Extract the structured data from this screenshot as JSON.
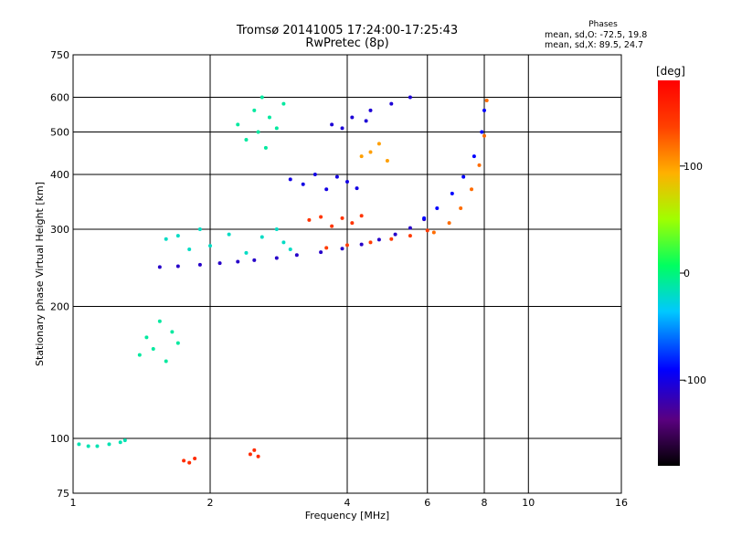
{
  "header": {
    "title": "Tromsø 20141005 17:24:00-17:25:43",
    "subtitle": "RwPretec (8p)",
    "phase_heading": "Phases",
    "phase_o": "mean, sd,O: -72.5, 19.8",
    "phase_x": "mean, sd,X:  89.5, 24.7"
  },
  "chart_data": {
    "type": "scatter",
    "xlabel": "Frequency [MHz]",
    "ylabel": "Stationary phase Virtual Height [km]",
    "x_scale": "log",
    "y_scale": "log",
    "xlim": [
      1,
      16
    ],
    "ylim": [
      75,
      750
    ],
    "x_ticks": [
      1,
      2,
      4,
      6,
      8,
      10,
      16
    ],
    "y_ticks": [
      75,
      100,
      200,
      300,
      400,
      500,
      600,
      750
    ],
    "grid": true,
    "colorbar": {
      "label": "[deg]",
      "range": [
        -180,
        180
      ],
      "ticks": [
        100,
        0,
        -100
      ]
    },
    "series": [
      {
        "phase": -110,
        "x": [
          1.55,
          1.7,
          1.9,
          2.1,
          2.3,
          2.5,
          2.8,
          3.1,
          3.5,
          3.9,
          4.3,
          4.7,
          5.1,
          5.5,
          5.9
        ],
        "y": [
          246,
          247,
          249,
          251,
          253,
          255,
          258,
          262,
          266,
          271,
          277,
          284,
          292,
          302,
          316
        ]
      },
      {
        "phase": -90,
        "x": [
          5.9,
          6.3,
          6.8,
          7.2,
          7.6,
          7.9,
          8.0
        ],
        "y": [
          318,
          335,
          362,
          395,
          440,
          500,
          560
        ]
      },
      {
        "phase": 120,
        "x": [
          6.2,
          6.7,
          7.1,
          7.5,
          7.8,
          8.0,
          8.1
        ],
        "y": [
          295,
          310,
          335,
          370,
          420,
          490,
          590
        ]
      },
      {
        "phase": 140,
        "x": [
          3.6,
          4.0,
          4.5,
          5.0,
          5.5,
          6.0
        ],
        "y": [
          272,
          276,
          280,
          285,
          290,
          298
        ]
      },
      {
        "phase": -20,
        "x": [
          1.6,
          1.7,
          1.8,
          1.9,
          2.0,
          2.2,
          2.4,
          2.6,
          2.8,
          2.9,
          3.0
        ],
        "y": [
          285,
          290,
          270,
          300,
          275,
          292,
          265,
          288,
          300,
          280,
          270
        ]
      },
      {
        "phase": -10,
        "x": [
          2.3,
          2.4,
          2.5,
          2.55,
          2.6,
          2.65,
          2.7,
          2.8,
          2.9
        ],
        "y": [
          520,
          480,
          560,
          500,
          600,
          460,
          540,
          510,
          580
        ]
      },
      {
        "phase": -100,
        "x": [
          3.0,
          3.2,
          3.4,
          3.6,
          3.8,
          4.0,
          4.2
        ],
        "y": [
          390,
          380,
          400,
          370,
          395,
          385,
          372
        ]
      },
      {
        "phase": 145,
        "x": [
          3.3,
          3.5,
          3.7,
          3.9,
          4.1,
          4.3
        ],
        "y": [
          315,
          320,
          305,
          318,
          310,
          322
        ]
      },
      {
        "phase": -10,
        "x": [
          1.4,
          1.45,
          1.5,
          1.55,
          1.6,
          1.65,
          1.7
        ],
        "y": [
          155,
          170,
          160,
          185,
          150,
          175,
          165
        ]
      },
      {
        "phase": -15,
        "x": [
          1.03,
          1.08,
          1.13,
          1.2,
          1.27,
          1.3
        ],
        "y": [
          97,
          96,
          96,
          97,
          98,
          99
        ]
      },
      {
        "phase": 150,
        "x": [
          1.75,
          1.8,
          1.85,
          2.45,
          2.5,
          2.55
        ],
        "y": [
          89,
          88,
          90,
          92,
          94,
          91
        ]
      },
      {
        "phase": -105,
        "x": [
          3.7,
          4.1,
          4.5,
          5.0,
          5.5,
          3.9,
          4.4
        ],
        "y": [
          520,
          540,
          560,
          580,
          600,
          510,
          530
        ]
      },
      {
        "phase": 100,
        "x": [
          4.3,
          4.5,
          4.7,
          4.9
        ],
        "y": [
          440,
          450,
          470,
          430
        ]
      }
    ]
  }
}
